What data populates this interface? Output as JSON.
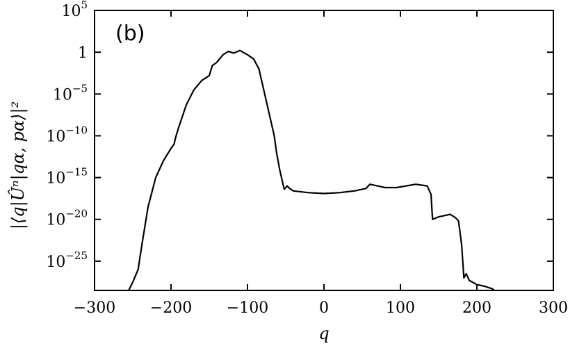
{
  "chart_data": {
    "type": "line",
    "panel_label": "(b)",
    "xlabel": "q",
    "ylabel": "|⟨q|Ûⁿ|qα, pα⟩|²",
    "xlim": [
      -300,
      300
    ],
    "ylim_log10": [
      -28.5,
      5
    ],
    "y_scale": "log",
    "grid": false,
    "x_ticks": [
      -300,
      -200,
      -100,
      0,
      100,
      200,
      300
    ],
    "x_tick_labels": [
      "−300",
      "−200",
      "−100",
      "0",
      "100",
      "200",
      "300"
    ],
    "y_ticks_log10": [
      5,
      0,
      -5,
      -10,
      -15,
      -20,
      -25
    ],
    "y_tick_labels": [
      {
        "base": "10",
        "exp": "5"
      },
      {
        "base": "1",
        "exp": ""
      },
      {
        "base": "10",
        "exp": "−5"
      },
      {
        "base": "10",
        "exp": "−10"
      },
      {
        "base": "10",
        "exp": "−15"
      },
      {
        "base": "10",
        "exp": "−20"
      },
      {
        "base": "10",
        "exp": "−25"
      }
    ],
    "series": [
      {
        "x": [
          -258,
          -250,
          -243,
          -238,
          -230,
          -220,
          -210,
          -200,
          -196,
          -194,
          -190,
          -180,
          -170,
          -160,
          -150,
          -146,
          -140,
          -132,
          -125,
          -118,
          -110,
          -100,
          -92,
          -85,
          -80,
          -75,
          -70,
          -65,
          -62,
          -58,
          -55,
          -52,
          -48,
          -45,
          -40,
          -20,
          0,
          20,
          40,
          55,
          60,
          80,
          95,
          120,
          135,
          140,
          142,
          150,
          165,
          172,
          176,
          180,
          183,
          186,
          190,
          200,
          210,
          220,
          226
        ],
        "log10_y": [
          -29,
          -27.5,
          -26,
          -23,
          -18.5,
          -15,
          -13,
          -11.5,
          -11,
          -10.2,
          -9,
          -6.3,
          -4.5,
          -3.4,
          -2.8,
          -1.6,
          -1.2,
          -0.3,
          0.1,
          -0.1,
          0.2,
          -0.3,
          -0.8,
          -2,
          -4,
          -6,
          -8,
          -10,
          -12,
          -14,
          -15.2,
          -16.4,
          -16,
          -16.3,
          -16.6,
          -16.8,
          -16.9,
          -16.8,
          -16.6,
          -16.3,
          -15.8,
          -16.2,
          -16.2,
          -15.8,
          -16.0,
          -17,
          -20.0,
          -19.7,
          -19.4,
          -19.8,
          -20.2,
          -23,
          -27,
          -26.5,
          -27.3,
          -27.8,
          -28.0,
          -28.3,
          -28.7
        ]
      }
    ]
  }
}
